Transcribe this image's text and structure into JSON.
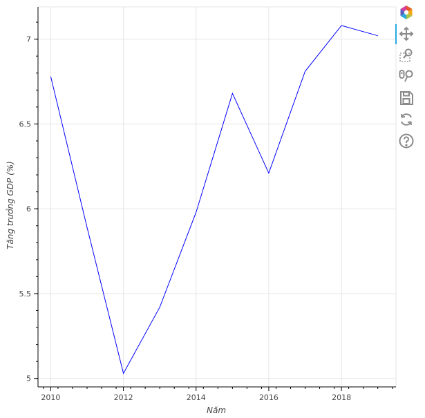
{
  "chart_data": {
    "type": "line",
    "title": "",
    "xlabel": "Năm",
    "ylabel": "Tăng trưởng GDP (%)",
    "x": [
      2010,
      2011,
      2012,
      2013,
      2014,
      2015,
      2016,
      2017,
      2018,
      2019
    ],
    "series": [
      {
        "values": [
          6.78,
          5.89,
          5.03,
          5.42,
          5.98,
          6.68,
          6.21,
          6.81,
          7.08,
          7.02
        ],
        "color": "#0000ff"
      }
    ],
    "xlim": [
      2009.65,
      2019.5
    ],
    "ylim": [
      4.95,
      7.19
    ],
    "x_ticks": [
      2010,
      2012,
      2014,
      2016,
      2018
    ],
    "x_tick_labels": [
      "2010",
      "2012",
      "2014",
      "2016",
      "2018"
    ],
    "y_ticks": [
      5,
      5.5,
      6,
      6.5,
      7
    ],
    "y_tick_labels": [
      "5",
      "5.5",
      "6",
      "6.5",
      "7"
    ],
    "grid": true,
    "legend": "none"
  },
  "toolbar": {
    "tools": [
      "bokeh-logo-icon",
      "pan-icon",
      "box-zoom-icon",
      "wheel-zoom-icon",
      "save-icon",
      "reset-icon",
      "help-icon"
    ],
    "active": "pan-icon",
    "accent_color": "#26aae1"
  }
}
